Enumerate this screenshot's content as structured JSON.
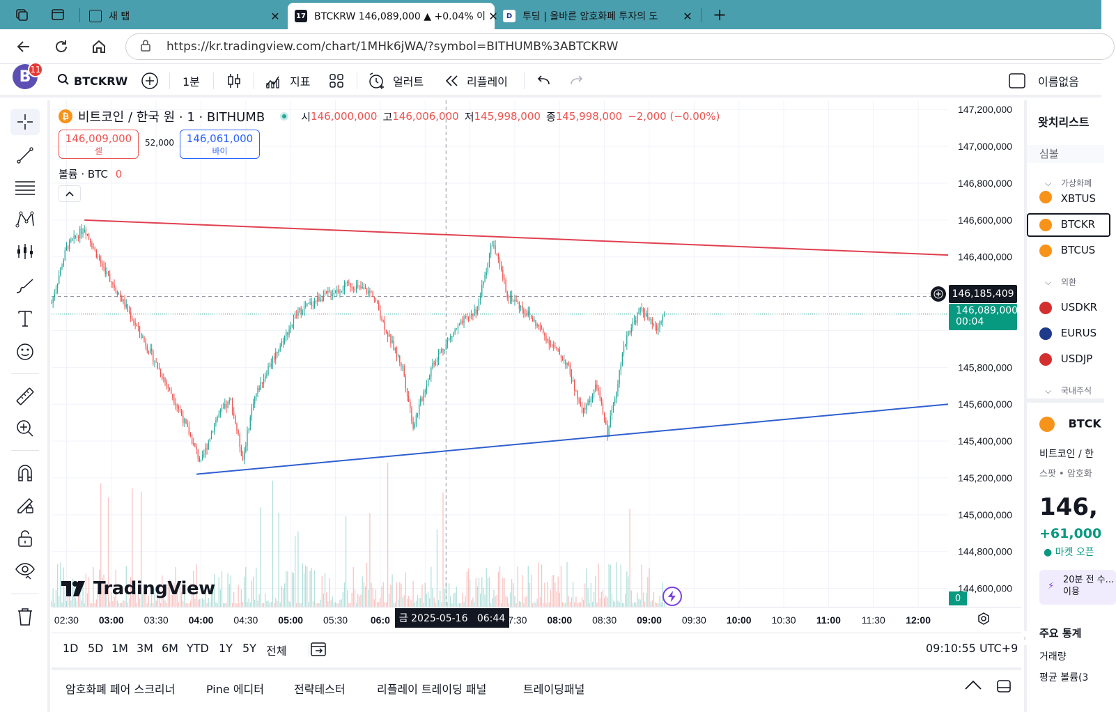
{
  "browser": {
    "tabs": [
      {
        "label": "새 탭"
      },
      {
        "label": "BTCKRW 146,089,000 ▲ +0.04% 이"
      },
      {
        "label": "투딩 | 올바른 암호화폐 투자의 도"
      }
    ],
    "url": "https://kr.tradingview.com/chart/1MHk6jWA/?symbol=BITHUMB%3ABTCKRW"
  },
  "toolbar": {
    "avatar_letter": "B",
    "notification_count": "11",
    "symbol": "BTCKRW",
    "interval": "1분",
    "indicators": "지표",
    "alert": "얼러트",
    "replay": "리플레이",
    "layout_name": "이름없음"
  },
  "legend": {
    "title": "비트코인 / 한국 원 · 1 · BITHUMB",
    "o_label": "시",
    "o_value": "146,000,000",
    "h_label": "고",
    "h_value": "146,006,000",
    "l_label": "저",
    "l_value": "145,998,000",
    "c_label": "종",
    "c_value": "145,998,000",
    "change": "−2,000 (−0.00%)",
    "sell_price": "146,009,000",
    "sell_label": "셀",
    "spread": "52,000",
    "buy_price": "146,061,000",
    "buy_label": "바이",
    "volume_label": "볼륨 · BTC",
    "volume_value": "0"
  },
  "price_axis": {
    "ticks": [
      "147,200,000",
      "147,000,000",
      "146,800,000",
      "146,600,000",
      "146,400,000",
      "145,800,000",
      "145,600,000",
      "145,400,000",
      "145,200,000",
      "145,000,000",
      "144,800,000",
      "144,600,000"
    ],
    "crosshair_price": "146,185,409",
    "last_price": "146,089,000",
    "countdown": "00:04",
    "volume_badge": "0"
  },
  "time_axis": {
    "ticks": [
      "02:30",
      "03:00",
      "03:30",
      "04:00",
      "04:30",
      "05:00",
      "05:30",
      "06:0",
      "07:30",
      "08:00",
      "08:30",
      "09:00",
      "09:30",
      "10:00",
      "10:30",
      "11:00",
      "11:30",
      "12:00"
    ],
    "crosshair_time": "금 2025-05-16   06:44"
  },
  "watermark": "TradingView",
  "colors": {
    "up": "#26a69a",
    "down": "#ef5350",
    "resistance": "#e04050",
    "support": "#2f5fd0",
    "accent": "#2962ff"
  },
  "chart_data": {
    "type": "candlestick",
    "symbol": "BITHUMB:BTCKRW",
    "interval": "1",
    "x_range": [
      "02:20",
      "12:20"
    ],
    "ylim": [
      144500000,
      147250000
    ],
    "price_path": [
      {
        "t": "02:20",
        "p": 146150000
      },
      {
        "t": "02:30",
        "p": 146450000
      },
      {
        "t": "02:42",
        "p": 146560000
      },
      {
        "t": "02:52",
        "p": 146380000
      },
      {
        "t": "03:05",
        "p": 146200000
      },
      {
        "t": "03:15",
        "p": 146050000
      },
      {
        "t": "03:30",
        "p": 145820000
      },
      {
        "t": "03:45",
        "p": 145580000
      },
      {
        "t": "04:00",
        "p": 145280000
      },
      {
        "t": "04:10",
        "p": 145520000
      },
      {
        "t": "04:20",
        "p": 145620000
      },
      {
        "t": "04:28",
        "p": 145300000
      },
      {
        "t": "04:35",
        "p": 145620000
      },
      {
        "t": "04:45",
        "p": 145800000
      },
      {
        "t": "04:55",
        "p": 145950000
      },
      {
        "t": "05:05",
        "p": 146100000
      },
      {
        "t": "05:20",
        "p": 146180000
      },
      {
        "t": "05:40",
        "p": 146250000
      },
      {
        "t": "05:55",
        "p": 146200000
      },
      {
        "t": "06:05",
        "p": 145980000
      },
      {
        "t": "06:15",
        "p": 145800000
      },
      {
        "t": "06:22",
        "p": 145480000
      },
      {
        "t": "06:35",
        "p": 145820000
      },
      {
        "t": "06:50",
        "p": 146000000
      },
      {
        "t": "07:05",
        "p": 146120000
      },
      {
        "t": "07:15",
        "p": 146480000
      },
      {
        "t": "07:25",
        "p": 146200000
      },
      {
        "t": "07:40",
        "p": 146080000
      },
      {
        "t": "07:55",
        "p": 145920000
      },
      {
        "t": "08:05",
        "p": 145820000
      },
      {
        "t": "08:15",
        "p": 145550000
      },
      {
        "t": "08:25",
        "p": 145700000
      },
      {
        "t": "08:32",
        "p": 145440000
      },
      {
        "t": "08:45",
        "p": 145980000
      },
      {
        "t": "08:55",
        "p": 146120000
      },
      {
        "t": "09:00",
        "p": 146050000
      },
      {
        "t": "09:05",
        "p": 146000000
      },
      {
        "t": "09:10",
        "p": 146089000
      }
    ],
    "lines": [
      {
        "name": "resistance",
        "from": {
          "t": "02:42",
          "p": 146600000
        },
        "to": {
          "t": "12:20",
          "p": 146410000
        }
      },
      {
        "name": "support",
        "from": {
          "t": "03:57",
          "p": 145220000
        },
        "to": {
          "t": "12:20",
          "p": 145600000
        }
      }
    ],
    "crosshair": {
      "t": "06:44",
      "p": 146185409
    }
  },
  "range_bar": {
    "ranges": [
      "1D",
      "5D",
      "1M",
      "3M",
      "6M",
      "YTD",
      "1Y",
      "5Y",
      "전체"
    ],
    "clock": "09:10:55 UTC+9"
  },
  "bottom_panel": {
    "tabs": [
      "암호화폐 페어 스크리너",
      "Pine 에디터",
      "전략테스터",
      "리플레이 트레이딩 패널",
      "트레이딩패널"
    ]
  },
  "watchlist": {
    "title": "왓치리스트",
    "column": "심볼",
    "sections": [
      {
        "name": "가상화폐",
        "items": [
          "XBTUS",
          "BTCKR",
          "BTCUS"
        ]
      },
      {
        "name": "외환",
        "items": [
          "USDKR",
          "EURUS",
          "USDJP"
        ]
      },
      {
        "name": "국내주식",
        "items": []
      }
    ],
    "detail": {
      "symbol": "BTCK",
      "name": "비트코인 / 한",
      "type": "스팟 • 암호화",
      "price": "146,",
      "change": "+61,000",
      "status": "● 마켓 오픈",
      "note": "20분 전 수...이용",
      "stats_title": "주요 통계",
      "stat1": "거래량",
      "stat2": "평균 볼륨(3"
    }
  }
}
